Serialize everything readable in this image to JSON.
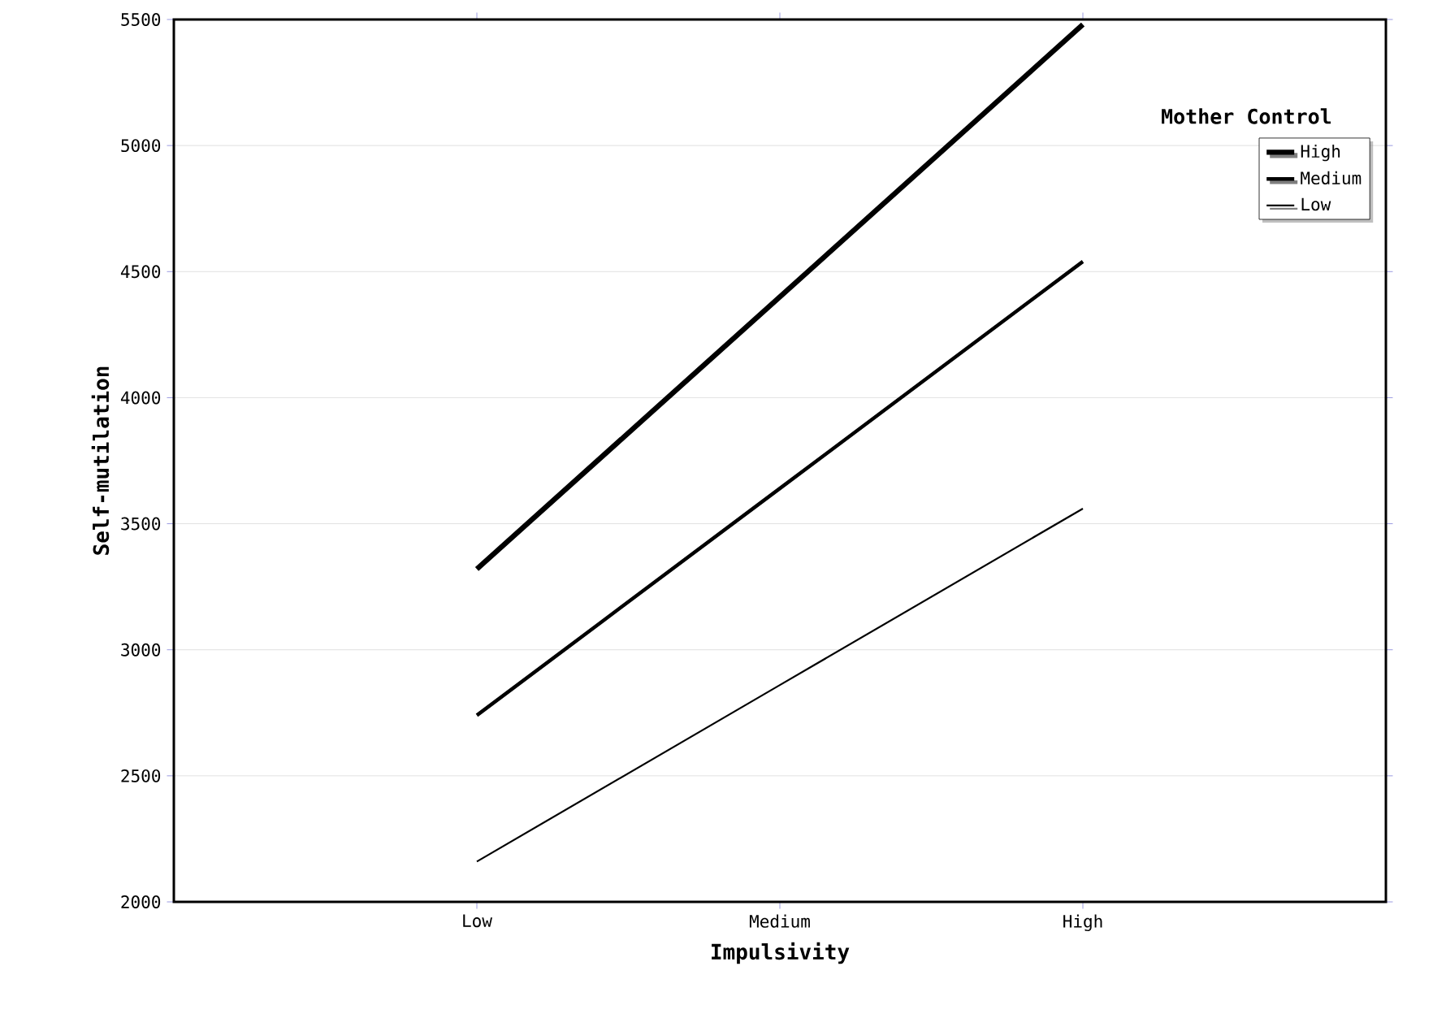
{
  "chart_data": {
    "type": "line",
    "xlabel": "Impulsivity",
    "ylabel": "Self-mutilation",
    "legend_title": "Mother Control",
    "categories": [
      "Low",
      "Medium",
      "High"
    ],
    "series": [
      {
        "name": "High",
        "color": "#000000",
        "values": [
          3320,
          4400,
          5480
        ]
      },
      {
        "name": "Medium",
        "color": "#000000",
        "values": [
          2740,
          3640,
          4540
        ]
      },
      {
        "name": "Low",
        "color": "#000000",
        "values": [
          2160,
          2860,
          3560
        ]
      }
    ],
    "ylim": [
      2000,
      5500
    ],
    "yticks": [
      2000,
      2500,
      3000,
      3500,
      4000,
      4500,
      5000,
      5500
    ],
    "grid": "y",
    "legend": "top right",
    "marker": "none",
    "line_style": "solid"
  }
}
